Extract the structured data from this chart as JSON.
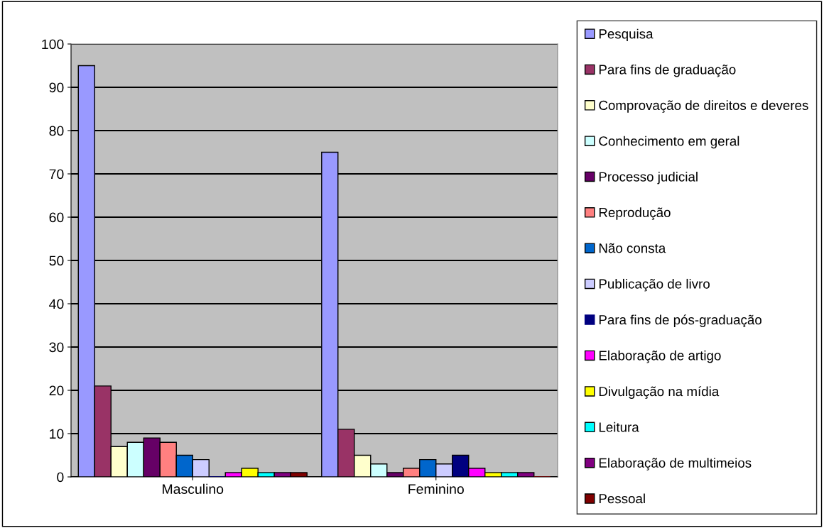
{
  "chart_data": {
    "type": "bar",
    "categories": [
      "Masculino",
      "Feminino"
    ],
    "series": [
      {
        "name": "Pesquisa",
        "color": "#9999ff",
        "values": [
          95,
          75
        ]
      },
      {
        "name": "Para fins de graduação",
        "color": "#993366",
        "values": [
          21,
          11
        ]
      },
      {
        "name": "Comprovação de direitos e deveres",
        "color": "#ffffcc",
        "values": [
          7,
          5
        ]
      },
      {
        "name": "Conhecimento em geral",
        "color": "#ccffff",
        "values": [
          8,
          3
        ]
      },
      {
        "name": "Processo judicial",
        "color": "#660066",
        "values": [
          9,
          1
        ]
      },
      {
        "name": "Reprodução",
        "color": "#ff8080",
        "values": [
          8,
          2
        ]
      },
      {
        "name": "Não consta",
        "color": "#0066cc",
        "values": [
          5,
          4
        ]
      },
      {
        "name": "Publicação de livro",
        "color": "#ccccff",
        "values": [
          4,
          3
        ]
      },
      {
        "name": "Para fins de pós-graduação",
        "color": "#000080",
        "values": [
          0,
          5
        ]
      },
      {
        "name": "Elaboração de artigo",
        "color": "#ff00ff",
        "values": [
          1,
          2
        ]
      },
      {
        "name": "Divulgação na mídia",
        "color": "#ffff00",
        "values": [
          2,
          1
        ]
      },
      {
        "name": "Leitura",
        "color": "#00ffff",
        "values": [
          1,
          1
        ]
      },
      {
        "name": "Elaboração de multimeios",
        "color": "#800080",
        "values": [
          1,
          1
        ]
      },
      {
        "name": "Pessoal",
        "color": "#800000",
        "values": [
          1,
          0
        ]
      }
    ],
    "ylim": [
      0,
      100
    ],
    "yticks": [
      0,
      10,
      20,
      30,
      40,
      50,
      60,
      70,
      80,
      90,
      100
    ],
    "grid": "y",
    "legend": "right"
  }
}
